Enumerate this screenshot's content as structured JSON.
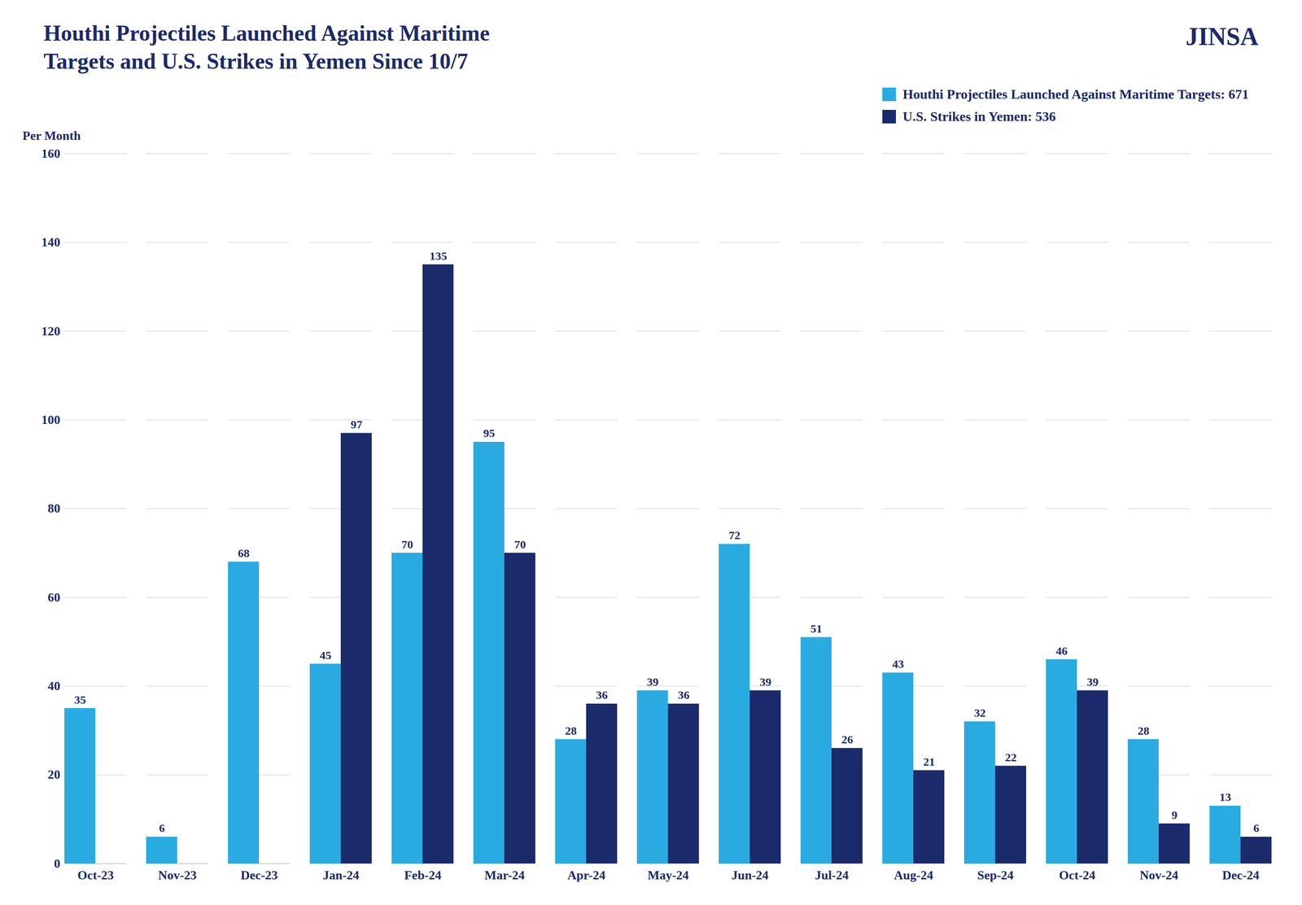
{
  "chart_data": {
    "type": "bar",
    "title": "Houthi Projectiles Launched Against Maritime",
    "subtitle": "Targets and U.S. Strikes in Yemen Since 10/7",
    "annotations": [
      "JINSA"
    ],
    "ylabel": "Per Month",
    "categories": [
      "Oct-23",
      "Nov-23",
      "Dec-23",
      "Jan-24",
      "Feb-24",
      "Mar-24",
      "Apr-24",
      "May-24",
      "Jun-24",
      "Jul-24",
      "Aug-24",
      "Sep-24",
      "Oct-24",
      "Nov-24",
      "Dec-24"
    ],
    "series": [
      {
        "name": "Houthi Projectiles Launched Against Maritime Targets: 671",
        "color": "#29abe2",
        "values": [
          35,
          6,
          68,
          45,
          70,
          95,
          28,
          39,
          72,
          51,
          43,
          32,
          46,
          28,
          13
        ]
      },
      {
        "name": "U.S. Strikes in Yemen: 536",
        "color": "#1b2a6b",
        "values": [
          0,
          0,
          0,
          97,
          135,
          70,
          36,
          36,
          39,
          26,
          21,
          22,
          39,
          9,
          6
        ],
        "value_labels": [
          null,
          null,
          null,
          "97",
          "135",
          "70",
          "36",
          "36",
          "39",
          "26",
          "21",
          "22",
          "39",
          "9",
          "6"
        ]
      }
    ],
    "ylim": [
      0,
      160
    ],
    "yticks": [
      0,
      20,
      40,
      60,
      80,
      100,
      120,
      140,
      160
    ],
    "grid": true,
    "legend": "upper right",
    "data_labels": true
  }
}
